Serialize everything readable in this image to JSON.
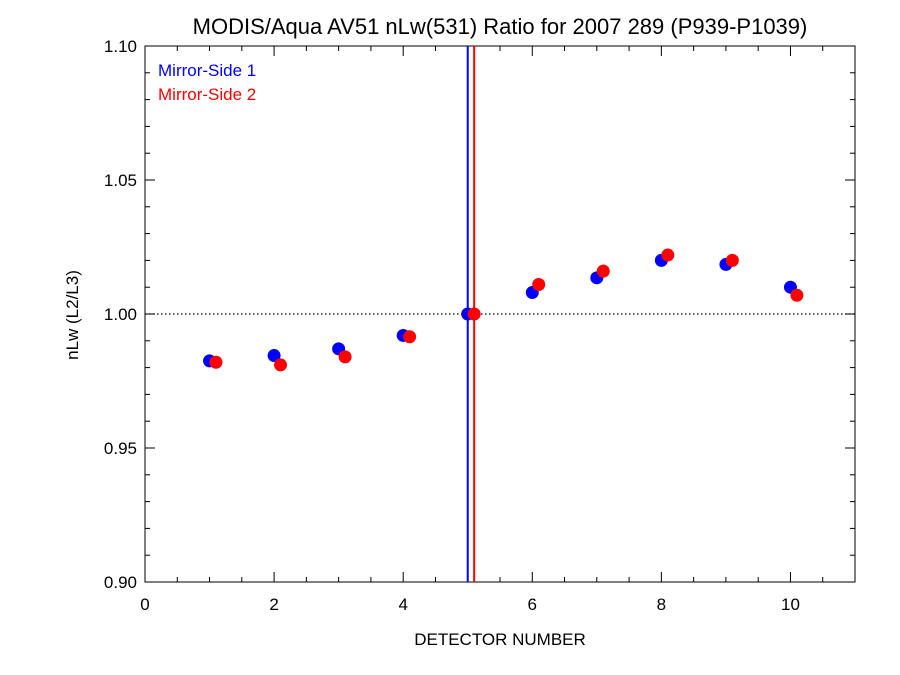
{
  "chart_data": {
    "type": "scatter",
    "title": "MODIS/Aqua AV51 nLw(531) Ratio for 2007 289 (P939-P1039)",
    "xlabel": "DETECTOR NUMBER",
    "ylabel": "nLw (L2/L3)",
    "xlim": [
      0,
      11
    ],
    "ylim": [
      0.9,
      1.1
    ],
    "x_ticks": [
      0,
      2,
      4,
      6,
      8,
      10
    ],
    "x_tick_labels": [
      "0",
      "2",
      "4",
      "6",
      "8",
      "10"
    ],
    "y_ticks": [
      0.9,
      0.95,
      1.0,
      1.05,
      1.1
    ],
    "y_tick_labels": [
      "0.90",
      "0.95",
      "1.00",
      "1.05",
      "1.10"
    ],
    "reference_line": {
      "y": 1.0,
      "style": "dotted"
    },
    "legend_position": "top-left",
    "series": [
      {
        "name": "Mirror-Side 1",
        "color": "#0000ff",
        "x": [
          1,
          2,
          3,
          4,
          5,
          6,
          7,
          8,
          9,
          10
        ],
        "y": [
          0.9825,
          0.9845,
          0.987,
          0.992,
          1.0,
          1.008,
          1.0135,
          1.02,
          1.0185,
          1.01
        ],
        "vertical_line_x": 5.0
      },
      {
        "name": "Mirror-Side 2",
        "color": "#ff0000",
        "x": [
          1.1,
          2.1,
          3.1,
          4.1,
          5.1,
          6.1,
          7.1,
          8.1,
          9.1,
          10.1
        ],
        "y": [
          0.982,
          0.981,
          0.984,
          0.9915,
          1.0,
          1.011,
          1.016,
          1.022,
          1.02,
          1.007
        ],
        "vertical_line_x": 5.1
      }
    ]
  }
}
